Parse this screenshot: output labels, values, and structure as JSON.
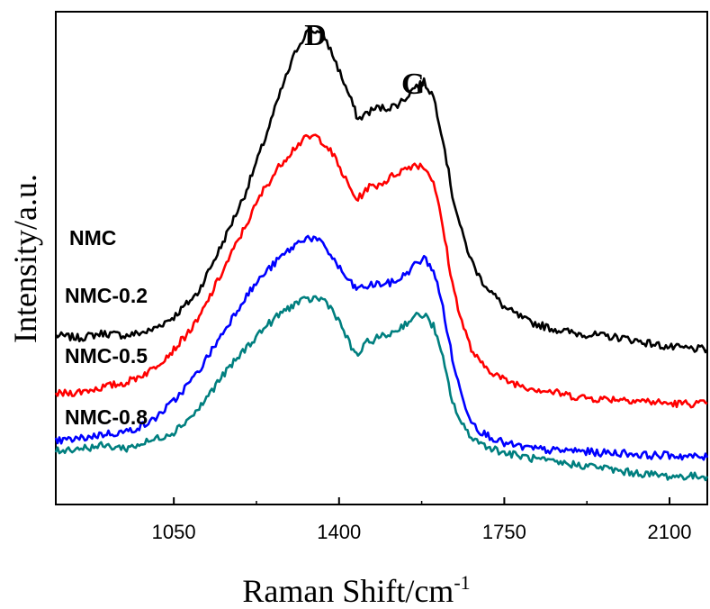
{
  "chart_data": {
    "type": "line",
    "xlabel": "Raman Shift/cm",
    "xlabel_superscript": "-1",
    "ylabel": "Intensity/a.u.",
    "xlim": [
      800,
      2180
    ],
    "ylim": [
      -0.3,
      10.2
    ],
    "x_ticks": [
      1050,
      1400,
      1750,
      2100
    ],
    "y_tick_labels": "none",
    "grid": false,
    "legend": "none",
    "annotations": [
      {
        "text": "D",
        "x": 1350
      },
      {
        "text": "G",
        "x": 1580
      }
    ],
    "series": [
      {
        "name": "NMC",
        "color": "#000000",
        "x": [
          800,
          850,
          900,
          950,
          1000,
          1050,
          1100,
          1150,
          1200,
          1240,
          1280,
          1310,
          1330,
          1350,
          1370,
          1390,
          1410,
          1430,
          1440,
          1460,
          1480,
          1500,
          1520,
          1540,
          1560,
          1580,
          1600,
          1620,
          1640,
          1660,
          1680,
          1700,
          1750,
          1800,
          1850,
          1900,
          1950,
          2000,
          2050,
          2100,
          2180
        ],
        "y": [
          3.3,
          3.25,
          3.35,
          3.3,
          3.4,
          3.7,
          4.2,
          5.2,
          6.3,
          7.4,
          8.6,
          9.4,
          9.75,
          9.8,
          9.65,
          9.2,
          8.7,
          8.2,
          7.9,
          8.05,
          8.15,
          8.15,
          8.2,
          8.35,
          8.6,
          8.7,
          8.4,
          7.5,
          6.3,
          5.5,
          4.9,
          4.5,
          3.9,
          3.6,
          3.45,
          3.35,
          3.3,
          3.25,
          3.15,
          3.05,
          3.0
        ]
      },
      {
        "name": "NMC-0.2",
        "color": "#ff0000",
        "x": [
          800,
          850,
          900,
          950,
          1000,
          1050,
          1100,
          1150,
          1200,
          1240,
          1280,
          1310,
          1330,
          1350,
          1370,
          1390,
          1410,
          1430,
          1440,
          1460,
          1480,
          1500,
          1520,
          1540,
          1560,
          1580,
          1600,
          1620,
          1640,
          1660,
          1680,
          1700,
          1750,
          1800,
          1850,
          1900,
          1950,
          2000,
          2050,
          2100,
          2180
        ],
        "y": [
          2.05,
          2.1,
          2.2,
          2.3,
          2.55,
          3.0,
          3.6,
          4.6,
          5.6,
          6.4,
          7.0,
          7.35,
          7.5,
          7.55,
          7.4,
          7.1,
          6.7,
          6.3,
          6.2,
          6.45,
          6.5,
          6.6,
          6.75,
          6.85,
          6.95,
          6.9,
          6.6,
          5.6,
          4.4,
          3.6,
          3.0,
          2.7,
          2.35,
          2.2,
          2.1,
          2.0,
          1.95,
          1.95,
          1.9,
          1.85,
          1.85
        ]
      },
      {
        "name": "NMC-0.5",
        "color": "#0000ff",
        "x": [
          800,
          850,
          900,
          950,
          1000,
          1050,
          1100,
          1150,
          1200,
          1240,
          1280,
          1310,
          1330,
          1350,
          1370,
          1390,
          1410,
          1430,
          1440,
          1460,
          1480,
          1500,
          1520,
          1540,
          1560,
          1580,
          1600,
          1620,
          1640,
          1660,
          1680,
          1700,
          1750,
          1800,
          1850,
          1900,
          1950,
          2000,
          2050,
          2100,
          2180
        ],
        "y": [
          1.05,
          1.1,
          1.2,
          1.25,
          1.45,
          1.9,
          2.5,
          3.3,
          4.1,
          4.6,
          5.0,
          5.25,
          5.4,
          5.35,
          5.2,
          4.9,
          4.6,
          4.35,
          4.3,
          4.35,
          4.4,
          4.4,
          4.45,
          4.6,
          4.8,
          4.95,
          4.7,
          3.9,
          2.8,
          2.0,
          1.5,
          1.25,
          1.0,
          0.9,
          0.85,
          0.85,
          0.8,
          0.8,
          0.75,
          0.75,
          0.7
        ]
      },
      {
        "name": "NMC-0.8",
        "color": "#007f7f",
        "x": [
          800,
          850,
          900,
          950,
          1000,
          1050,
          1100,
          1150,
          1200,
          1240,
          1280,
          1310,
          1330,
          1350,
          1370,
          1390,
          1410,
          1430,
          1440,
          1460,
          1480,
          1500,
          1520,
          1540,
          1560,
          1580,
          1600,
          1620,
          1640,
          1660,
          1680,
          1700,
          1750,
          1800,
          1850,
          1900,
          1950,
          2000,
          2050,
          2100,
          2180
        ],
        "y": [
          0.85,
          0.9,
          0.95,
          0.9,
          1.05,
          1.25,
          1.7,
          2.4,
          3.0,
          3.45,
          3.8,
          4.0,
          4.05,
          4.1,
          4.05,
          3.8,
          3.4,
          2.95,
          2.9,
          3.15,
          3.25,
          3.3,
          3.4,
          3.55,
          3.7,
          3.75,
          3.5,
          2.8,
          1.9,
          1.4,
          1.15,
          1.0,
          0.8,
          0.7,
          0.6,
          0.55,
          0.5,
          0.4,
          0.35,
          0.3,
          0.3
        ]
      }
    ]
  }
}
